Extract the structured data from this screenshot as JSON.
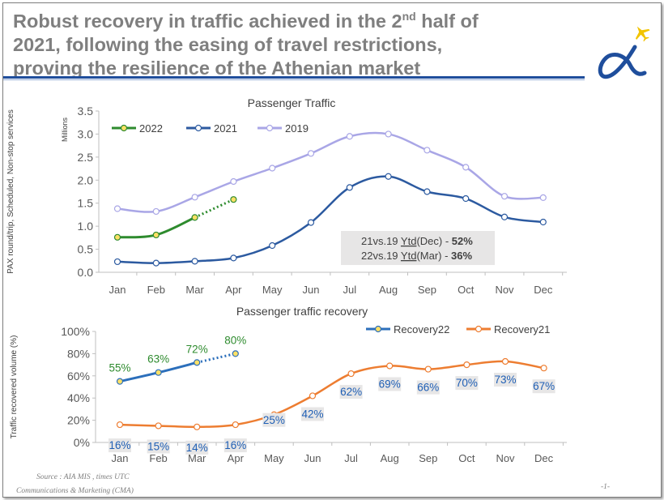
{
  "slide": {
    "title_line1_pre": "Robust recovery in traffic achieved in the 2",
    "title_sup": "nd",
    "title_line1_post": " half of",
    "title_line2": "2021, following the easing of travel restrictions,",
    "title_line3": "proving the resilience of the Athenian market",
    "source": "Source : AIA MIS , times UTC",
    "department": "Communications & Marketing (CMA)",
    "page_number": "-1-",
    "accent_color": "#1f4e9c",
    "logo_icon": "alpha-airplane-logo-icon"
  },
  "chart_data": [
    {
      "type": "line",
      "title": "Passenger Traffic",
      "ylabel": "PAX round/trip, Scheduled, Non-stop services",
      "unit_label": "Millions",
      "ylim": [
        0,
        3.5
      ],
      "yticks": [
        "0.0",
        "0.5",
        "1.0",
        "1.5",
        "2.0",
        "2.5",
        "3.0",
        "3.5"
      ],
      "categories": [
        "Jan",
        "Feb",
        "Mar",
        "Apr",
        "May",
        "Jun",
        "Jul",
        "Aug",
        "Sep",
        "Oct",
        "Nov",
        "Dec"
      ],
      "legend_position": "top-left",
      "series": [
        {
          "name": "2022",
          "color": "#2e8b2e",
          "marker_fill": "#ffe066",
          "values": [
            0.76,
            0.81,
            1.19,
            1.58,
            null,
            null,
            null,
            null,
            null,
            null,
            null,
            null
          ],
          "dotted_from": 2
        },
        {
          "name": "2021",
          "color": "#2c5aa0",
          "marker_fill": "#ffffff",
          "values": [
            0.23,
            0.2,
            0.24,
            0.31,
            0.58,
            1.08,
            1.84,
            2.08,
            1.75,
            1.6,
            1.2,
            1.09
          ]
        },
        {
          "name": "2019",
          "color": "#a9a6e6",
          "marker_fill": "#ffffff",
          "values": [
            1.38,
            1.32,
            1.63,
            1.97,
            2.26,
            2.58,
            2.95,
            3.0,
            2.65,
            2.28,
            1.65,
            1.62
          ]
        }
      ],
      "annotation": {
        "line1_prefix": "21vs.19 ",
        "line1_underlined": "Ytd",
        "line1_mid": "(Dec) - ",
        "line1_value": "52%",
        "line2_prefix": "22vs.19 ",
        "line2_underlined": "Ytd",
        "line2_mid": "(Mar) - ",
        "line2_value": "36%"
      }
    },
    {
      "type": "line",
      "title": "Passenger traffic recovery",
      "ylabel": "Traffic recovered volume (%)",
      "ylim": [
        0,
        100
      ],
      "yticks": [
        "0%",
        "20%",
        "40%",
        "60%",
        "80%",
        "100%"
      ],
      "categories": [
        "Jan",
        "Feb",
        "Mar",
        "Apr",
        "May",
        "Jun",
        "Jul",
        "Aug",
        "Sep",
        "Oct",
        "Nov",
        "Dec"
      ],
      "legend_position": "top-right",
      "series": [
        {
          "name": "Recovery22",
          "color": "#2c6fbb",
          "marker_fill": "#ffe066",
          "values": [
            55,
            63,
            72,
            80,
            null,
            null,
            null,
            null,
            null,
            null,
            null,
            null
          ],
          "labels": [
            "55%",
            "63%",
            "72%",
            "80%"
          ],
          "label_color": "#2e8b2e",
          "dotted_from": 2
        },
        {
          "name": "Recovery21",
          "color": "#ed7d31",
          "marker_fill": "#ffffff",
          "values": [
            16,
            15,
            14,
            16,
            25,
            42,
            62,
            69,
            66,
            70,
            73,
            67
          ],
          "labels": [
            "16%",
            "15%",
            "14%",
            "16%",
            "25%",
            "42%",
            "62%",
            "69%",
            "66%",
            "70%",
            "73%",
            "67%"
          ],
          "label_color": "#1f5fb5"
        }
      ]
    }
  ]
}
